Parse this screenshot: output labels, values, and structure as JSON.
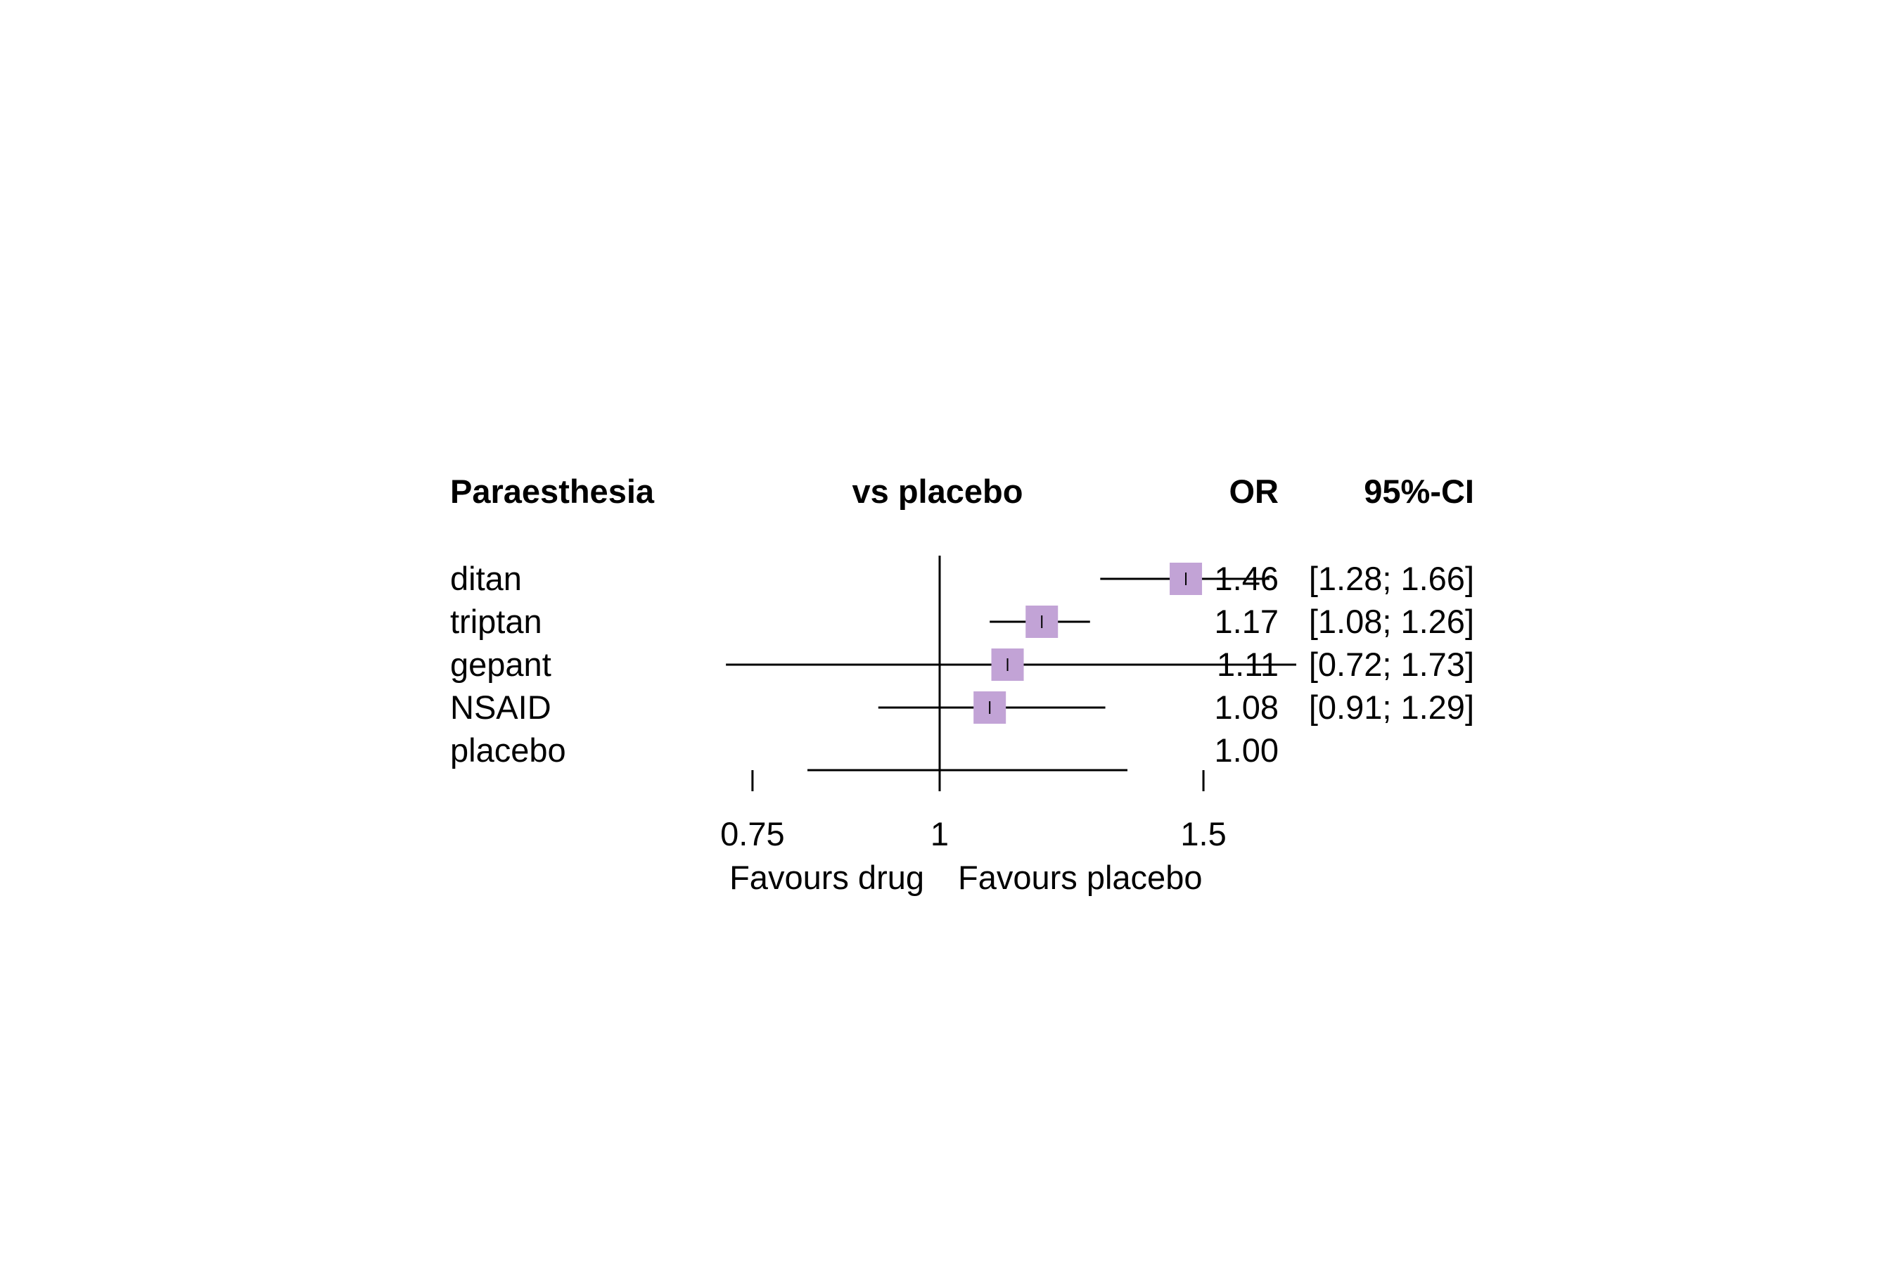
{
  "chart_data": {
    "type": "forest",
    "title": "Paraesthesia",
    "columns": {
      "label": "Paraesthesia",
      "plot": "vs placebo",
      "estimate": "OR",
      "ci": "95%-CI"
    },
    "scale": "log",
    "xlim": [
      0.7,
      1.68
    ],
    "reference_line": 1,
    "x_ticks": [
      {
        "value": 0.75,
        "label": "0.75"
      },
      {
        "value": 1,
        "label": "1"
      },
      {
        "value": 1.5,
        "label": "1.5"
      }
    ],
    "favours": {
      "left": "Favours drug",
      "right": "Favours placebo"
    },
    "marker_color": "#c2a3d6",
    "rows": [
      {
        "name": "ditan",
        "or": 1.46,
        "lower": 1.28,
        "upper": 1.66,
        "or_text": "1.46",
        "ci_text": "[1.28; 1.66]"
      },
      {
        "name": "triptan",
        "or": 1.17,
        "lower": 1.08,
        "upper": 1.26,
        "or_text": "1.17",
        "ci_text": "[1.08; 1.26]"
      },
      {
        "name": "gepant",
        "or": 1.11,
        "lower": 0.72,
        "upper": 1.73,
        "or_text": "1.11",
        "ci_text": "[0.72; 1.73]"
      },
      {
        "name": "NSAID",
        "or": 1.08,
        "lower": 0.91,
        "upper": 1.29,
        "or_text": "1.08",
        "ci_text": "[0.91; 1.29]"
      },
      {
        "name": "placebo",
        "or": 1.0,
        "lower": null,
        "upper": null,
        "or_text": "1.00",
        "ci_text": ""
      }
    ]
  }
}
